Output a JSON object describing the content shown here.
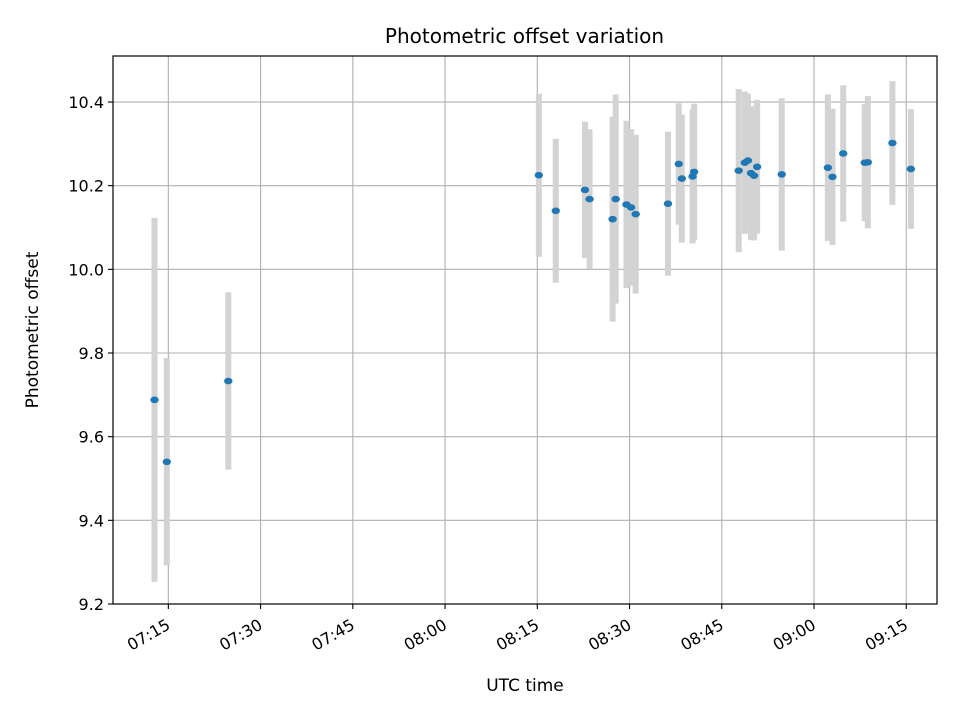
{
  "chart_data": {
    "type": "scatter",
    "title": "Photometric offset variation",
    "xlabel": "UTC time",
    "ylabel": "Photometric offset",
    "x_ticks": [
      "07:15",
      "07:30",
      "07:45",
      "08:00",
      "08:15",
      "08:30",
      "08:45",
      "09:00",
      "09:15"
    ],
    "y_ticks": [
      "9.2",
      "9.4",
      "9.6",
      "9.8",
      "10.0",
      "10.2",
      "10.4"
    ],
    "xlim": [
      "07:06",
      "09:20"
    ],
    "ylim": [
      9.2,
      10.51
    ],
    "grid": true,
    "colors": {
      "points": "#1f77b4",
      "error_bars": "#d3d3d3",
      "grid": "#b0b0b0"
    },
    "series": [
      {
        "points": [
          {
            "x": "07:12:45",
            "y": 9.688,
            "err": 0.435
          },
          {
            "x": "07:14:45",
            "y": 9.54,
            "err": 0.248
          },
          {
            "x": "07:24:45",
            "y": 9.733,
            "err": 0.212
          },
          {
            "x": "08:15:15",
            "y": 10.225,
            "err": 0.195
          },
          {
            "x": "08:18:00",
            "y": 10.14,
            "err": 0.172
          },
          {
            "x": "08:22:45",
            "y": 10.19,
            "err": 0.163
          },
          {
            "x": "08:23:30",
            "y": 10.168,
            "err": 0.167
          },
          {
            "x": "08:27:15",
            "y": 10.12,
            "err": 0.245
          },
          {
            "x": "08:27:45",
            "y": 10.168,
            "err": 0.25
          },
          {
            "x": "08:29:30",
            "y": 10.155,
            "err": 0.2
          },
          {
            "x": "08:30:15",
            "y": 10.148,
            "err": 0.187
          },
          {
            "x": "08:31:00",
            "y": 10.132,
            "err": 0.19
          },
          {
            "x": "08:36:15",
            "y": 10.157,
            "err": 0.172
          },
          {
            "x": "08:38:00",
            "y": 10.252,
            "err": 0.145
          },
          {
            "x": "08:38:30",
            "y": 10.217,
            "err": 0.153
          },
          {
            "x": "08:40:15",
            "y": 10.222,
            "err": 0.16
          },
          {
            "x": "08:40:30",
            "y": 10.233,
            "err": 0.163
          },
          {
            "x": "08:47:45",
            "y": 10.236,
            "err": 0.195
          },
          {
            "x": "08:48:45",
            "y": 10.255,
            "err": 0.17
          },
          {
            "x": "08:49:15",
            "y": 10.26,
            "err": 0.16
          },
          {
            "x": "08:49:45",
            "y": 10.23,
            "err": 0.16
          },
          {
            "x": "08:50:15",
            "y": 10.224,
            "err": 0.155
          },
          {
            "x": "08:50:45",
            "y": 10.245,
            "err": 0.16
          },
          {
            "x": "08:54:45",
            "y": 10.227,
            "err": 0.182
          },
          {
            "x": "09:02:15",
            "y": 10.243,
            "err": 0.175
          },
          {
            "x": "09:03:00",
            "y": 10.221,
            "err": 0.163
          },
          {
            "x": "09:04:45",
            "y": 10.277,
            "err": 0.163
          },
          {
            "x": "09:08:15",
            "y": 10.255,
            "err": 0.14
          },
          {
            "x": "09:08:45",
            "y": 10.256,
            "err": 0.158
          },
          {
            "x": "09:12:45",
            "y": 10.302,
            "err": 0.148
          },
          {
            "x": "09:15:45",
            "y": 10.24,
            "err": 0.143
          }
        ]
      }
    ]
  }
}
